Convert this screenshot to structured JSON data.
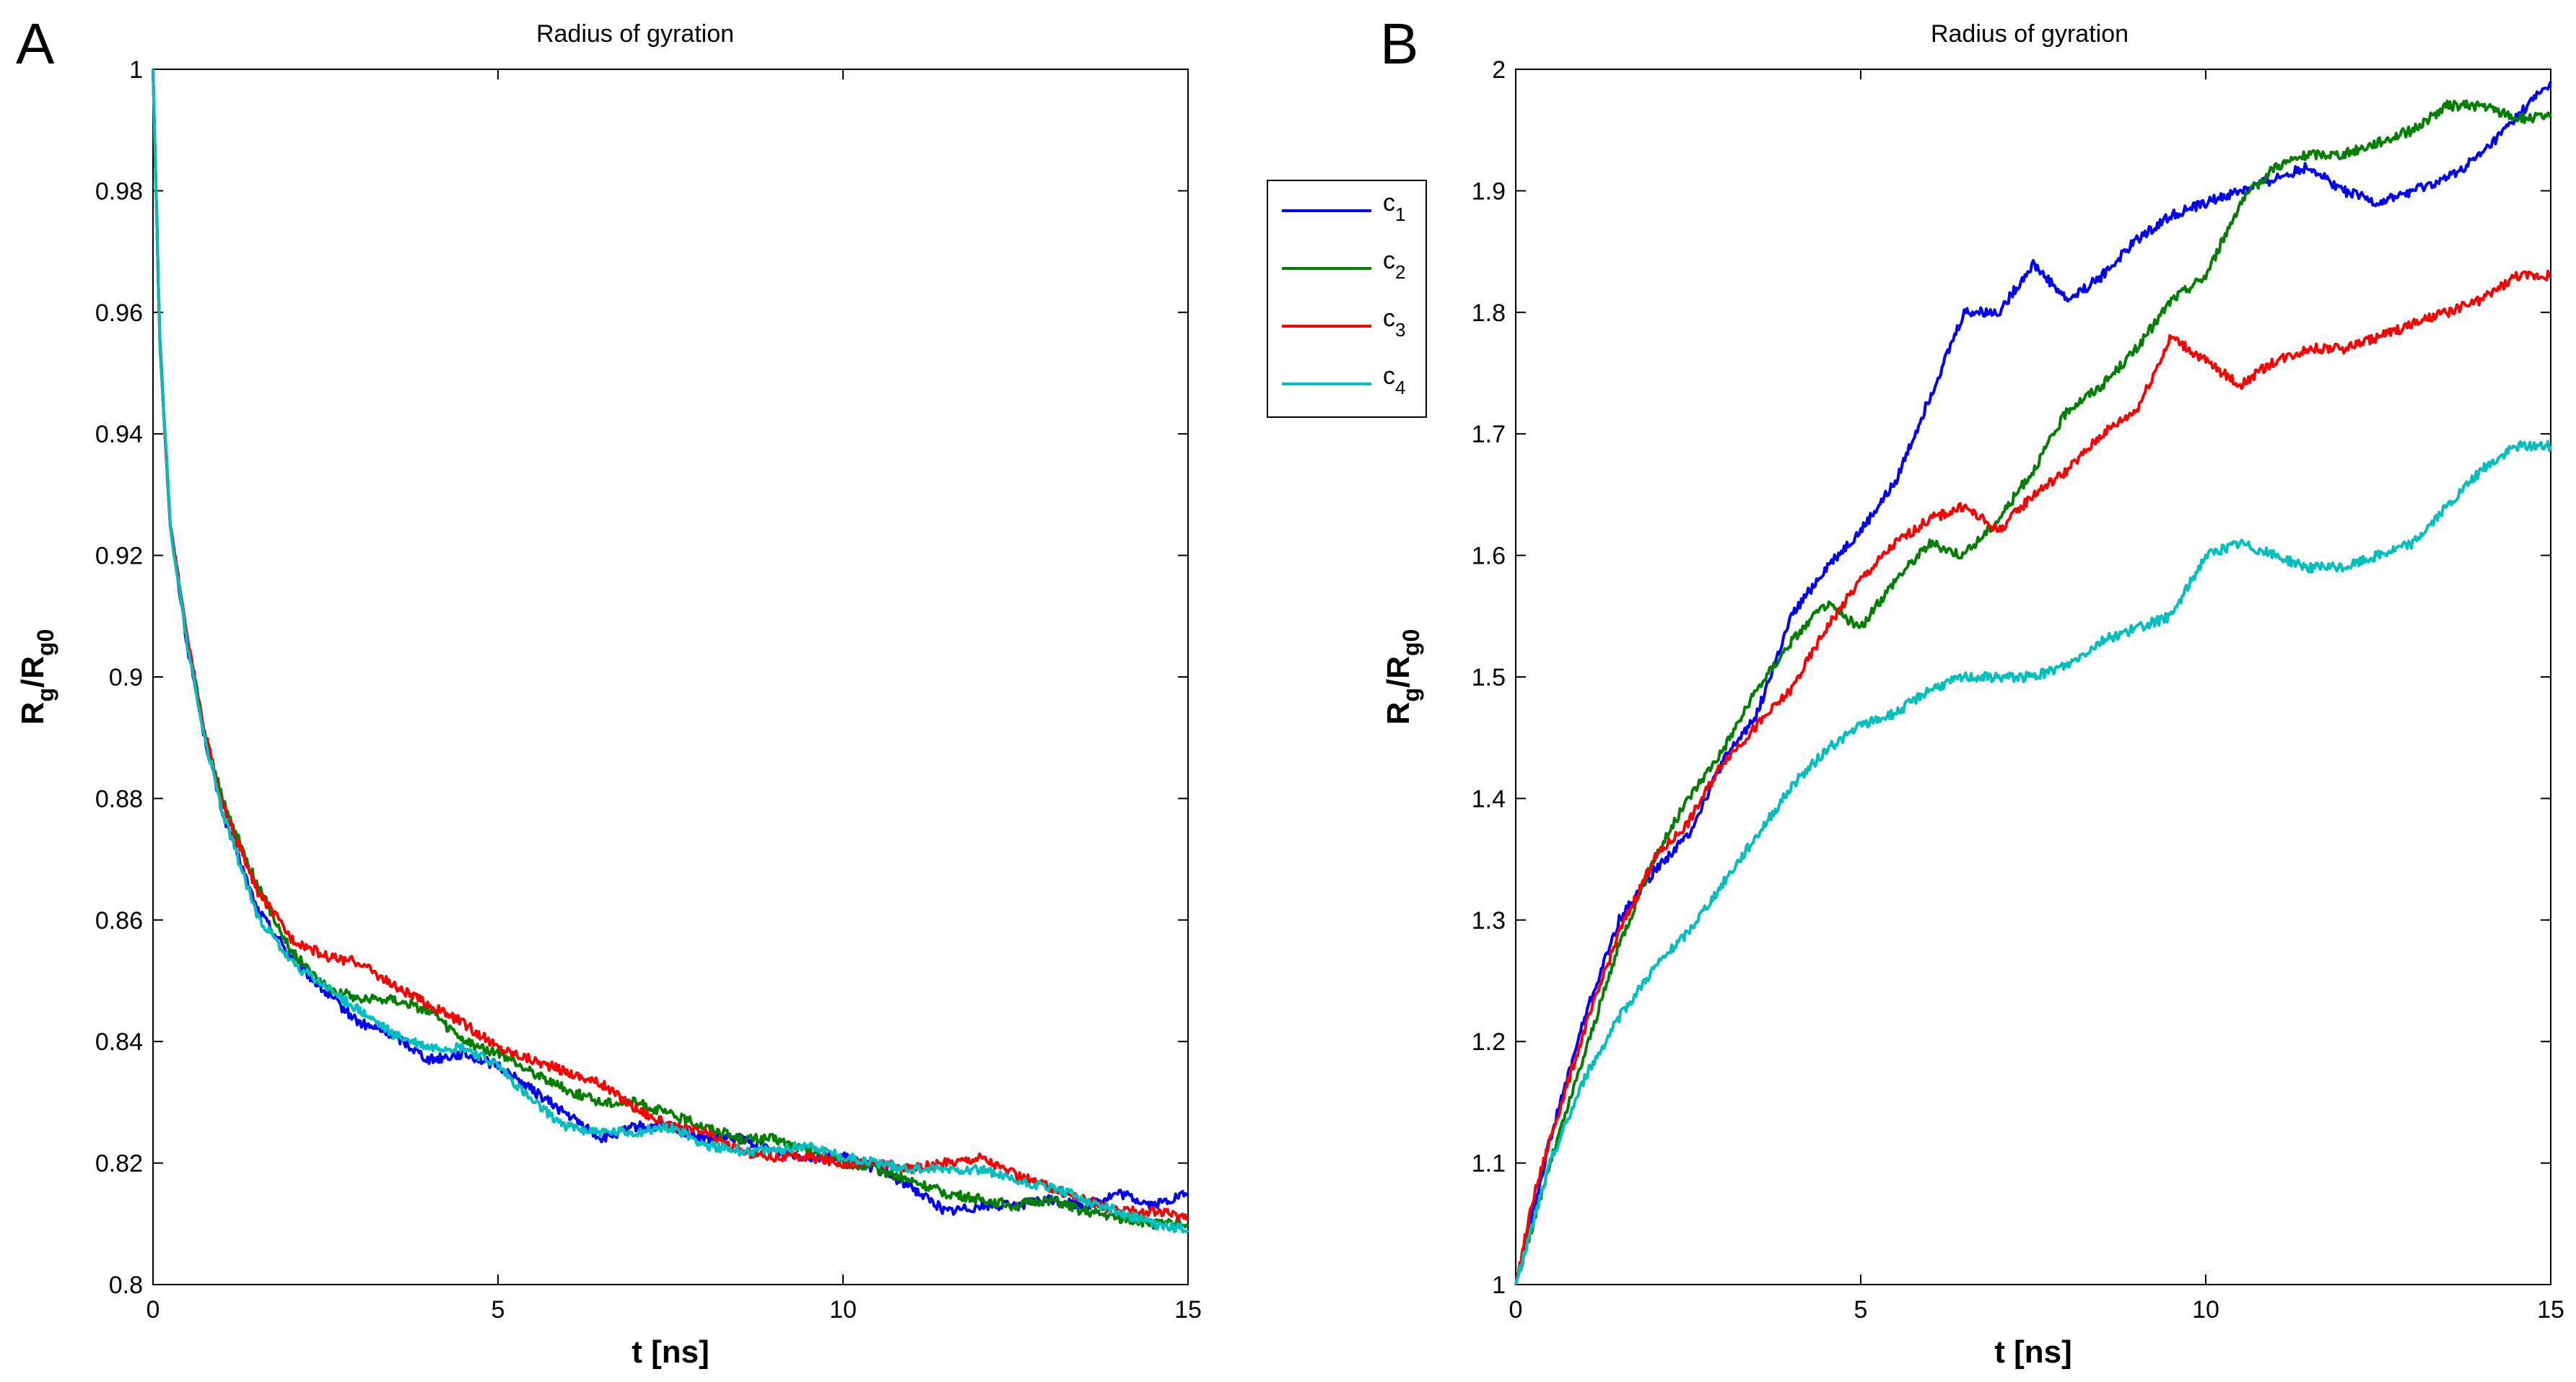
{
  "chart_data": [
    {
      "panel": "A",
      "type": "line",
      "title": "Radius of gyration",
      "xlabel": "t [ns]",
      "ylabel_main": "R",
      "ylabel_sub1": "g",
      "ylabel_mid": "/R",
      "ylabel_sub2": "g0",
      "xlim": [
        0,
        15
      ],
      "ylim": [
        0.8,
        1.0
      ],
      "xticks": [
        0,
        5,
        10,
        15
      ],
      "xtick_labels": [
        "0",
        "5",
        "10",
        "15"
      ],
      "yticks": [
        0.8,
        0.82,
        0.84,
        0.86,
        0.88,
        0.9,
        0.92,
        0.94,
        0.96,
        0.98,
        1.0
      ],
      "ytick_labels": [
        "0.8",
        "0.82",
        "0.84",
        "0.86",
        "0.88",
        "0.9",
        "0.92",
        "0.94",
        "0.96",
        "0.98",
        "1"
      ],
      "grid": false,
      "legend": {
        "placement": "right-outside",
        "entries": [
          {
            "base": "c",
            "sub": "1"
          },
          {
            "base": "c",
            "sub": "2"
          },
          {
            "base": "c",
            "sub": "3"
          },
          {
            "base": "c",
            "sub": "4"
          }
        ]
      },
      "series": [
        {
          "name": "c1",
          "color": "#0000ff",
          "x": [
            0,
            0.1,
            0.25,
            0.5,
            0.75,
            1,
            1.5,
            2,
            2.5,
            3,
            3.5,
            4,
            4.5,
            5,
            5.5,
            6,
            6.5,
            7,
            7.5,
            8,
            8.5,
            9,
            9.5,
            10,
            10.5,
            11,
            11.5,
            12,
            12.5,
            13,
            13.5,
            14,
            14.5,
            15
          ],
          "y": [
            1.0,
            0.955,
            0.925,
            0.905,
            0.89,
            0.878,
            0.862,
            0.854,
            0.848,
            0.843,
            0.841,
            0.837,
            0.838,
            0.836,
            0.832,
            0.828,
            0.824,
            0.826,
            0.826,
            0.824,
            0.824,
            0.822,
            0.821,
            0.821,
            0.819,
            0.816,
            0.812,
            0.813,
            0.813,
            0.814,
            0.813,
            0.815,
            0.813,
            0.815
          ]
        },
        {
          "name": "c2",
          "color": "#007f00",
          "x": [
            0,
            0.1,
            0.25,
            0.5,
            0.75,
            1,
            1.5,
            2,
            2.5,
            3,
            3.5,
            4,
            4.5,
            5,
            5.5,
            6,
            6.5,
            7,
            7.5,
            8,
            8.5,
            9,
            9.5,
            10,
            10.5,
            11,
            11.5,
            12,
            12.5,
            13,
            13.5,
            14,
            14.5,
            15
          ],
          "y": [
            1.0,
            0.955,
            0.925,
            0.906,
            0.891,
            0.88,
            0.866,
            0.855,
            0.849,
            0.847,
            0.847,
            0.845,
            0.84,
            0.838,
            0.835,
            0.832,
            0.83,
            0.83,
            0.828,
            0.826,
            0.824,
            0.824,
            0.822,
            0.82,
            0.819,
            0.817,
            0.815,
            0.814,
            0.813,
            0.814,
            0.812,
            0.811,
            0.81,
            0.81
          ]
        },
        {
          "name": "c3",
          "color": "#ff0000",
          "x": [
            0,
            0.1,
            0.25,
            0.5,
            0.75,
            1,
            1.5,
            2,
            2.5,
            3,
            3.5,
            4,
            4.5,
            5,
            5.5,
            6,
            6.5,
            7,
            7.5,
            8,
            8.5,
            9,
            9.5,
            10,
            10.5,
            11,
            11.5,
            12,
            12.5,
            13,
            13.5,
            14,
            14.5,
            15
          ],
          "y": [
            1.0,
            0.955,
            0.925,
            0.906,
            0.891,
            0.879,
            0.865,
            0.857,
            0.854,
            0.853,
            0.849,
            0.846,
            0.843,
            0.839,
            0.837,
            0.835,
            0.833,
            0.829,
            0.826,
            0.825,
            0.822,
            0.821,
            0.821,
            0.82,
            0.82,
            0.819,
            0.82,
            0.821,
            0.818,
            0.816,
            0.814,
            0.812,
            0.812,
            0.811
          ]
        },
        {
          "name": "c4",
          "color": "#00bfbf",
          "x": [
            0,
            0.1,
            0.25,
            0.5,
            0.75,
            1,
            1.5,
            2,
            2.5,
            3,
            3.5,
            4,
            4.5,
            5,
            5.5,
            6,
            6.5,
            7,
            7.5,
            8,
            8.5,
            9,
            9.5,
            10,
            10.5,
            11,
            11.5,
            12,
            12.5,
            13,
            13.5,
            14,
            14.5,
            15
          ],
          "y": [
            1.0,
            0.955,
            0.925,
            0.905,
            0.89,
            0.878,
            0.861,
            0.853,
            0.849,
            0.845,
            0.841,
            0.839,
            0.839,
            0.836,
            0.83,
            0.826,
            0.825,
            0.825,
            0.826,
            0.823,
            0.822,
            0.822,
            0.823,
            0.821,
            0.82,
            0.819,
            0.819,
            0.819,
            0.817,
            0.816,
            0.814,
            0.812,
            0.81,
            0.809
          ]
        }
      ]
    },
    {
      "panel": "B",
      "type": "line",
      "title": "Radius of gyration",
      "xlabel": "t [ns]",
      "ylabel_main": "R",
      "ylabel_sub1": "g",
      "ylabel_mid": "/R",
      "ylabel_sub2": "g0",
      "xlim": [
        0,
        15
      ],
      "ylim": [
        1.0,
        2.0
      ],
      "xticks": [
        0,
        5,
        10,
        15
      ],
      "xtick_labels": [
        "0",
        "5",
        "10",
        "15"
      ],
      "yticks": [
        1.0,
        1.1,
        1.2,
        1.3,
        1.4,
        1.5,
        1.6,
        1.7,
        1.8,
        1.9,
        2.0
      ],
      "ytick_labels": [
        "1",
        "1.1",
        "1.2",
        "1.3",
        "1.4",
        "1.5",
        "1.6",
        "1.7",
        "1.8",
        "1.9",
        "2"
      ],
      "grid": false,
      "series": [
        {
          "name": "c1",
          "color": "#0000ff",
          "x": [
            0,
            0.25,
            0.5,
            1,
            1.5,
            2,
            2.5,
            3,
            3.5,
            4,
            4.5,
            5,
            5.5,
            6,
            6.5,
            7,
            7.5,
            8,
            8.5,
            9,
            9.5,
            10,
            10.5,
            11,
            11.5,
            12,
            12.5,
            13,
            13.5,
            14,
            14.5,
            15
          ],
          "y": [
            1.0,
            1.06,
            1.12,
            1.22,
            1.3,
            1.34,
            1.37,
            1.43,
            1.47,
            1.55,
            1.59,
            1.62,
            1.66,
            1.73,
            1.8,
            1.8,
            1.84,
            1.81,
            1.83,
            1.86,
            1.88,
            1.89,
            1.9,
            1.91,
            1.92,
            1.9,
            1.89,
            1.9,
            1.91,
            1.93,
            1.96,
            1.99
          ]
        },
        {
          "name": "c2",
          "color": "#007f00",
          "x": [
            0,
            0.25,
            0.5,
            1,
            1.5,
            2,
            2.5,
            3,
            3.5,
            4,
            4.5,
            5,
            5.5,
            6,
            6.5,
            7,
            7.5,
            8,
            8.5,
            9,
            9.5,
            10,
            10.5,
            11,
            11.5,
            12,
            12.5,
            13,
            13.5,
            14,
            14.5,
            15
          ],
          "y": [
            1.0,
            1.05,
            1.1,
            1.19,
            1.28,
            1.35,
            1.4,
            1.44,
            1.49,
            1.53,
            1.56,
            1.54,
            1.58,
            1.61,
            1.6,
            1.63,
            1.67,
            1.72,
            1.74,
            1.77,
            1.81,
            1.83,
            1.89,
            1.92,
            1.93,
            1.93,
            1.94,
            1.95,
            1.97,
            1.97,
            1.96,
            1.96
          ]
        },
        {
          "name": "c3",
          "color": "#ff0000",
          "x": [
            0,
            0.25,
            0.5,
            1,
            1.5,
            2,
            2.5,
            3,
            3.5,
            4,
            4.5,
            5,
            5.5,
            6,
            6.5,
            7,
            7.5,
            8,
            8.5,
            9,
            9.5,
            10,
            10.5,
            11,
            11.5,
            12,
            12.5,
            13,
            13.5,
            14,
            14.5,
            15
          ],
          "y": [
            1.0,
            1.07,
            1.12,
            1.21,
            1.29,
            1.35,
            1.38,
            1.43,
            1.46,
            1.49,
            1.54,
            1.58,
            1.61,
            1.63,
            1.64,
            1.62,
            1.65,
            1.67,
            1.7,
            1.72,
            1.78,
            1.76,
            1.74,
            1.76,
            1.77,
            1.77,
            1.78,
            1.79,
            1.8,
            1.81,
            1.83,
            1.83
          ]
        },
        {
          "name": "c4",
          "color": "#00bfbf",
          "x": [
            0,
            0.25,
            0.5,
            1,
            1.5,
            2,
            2.5,
            3,
            3.5,
            4,
            4.5,
            5,
            5.5,
            6,
            6.5,
            7,
            7.5,
            8,
            8.5,
            9,
            9.5,
            10,
            10.5,
            11,
            11.5,
            12,
            12.5,
            13,
            13.5,
            14,
            14.5,
            15
          ],
          "y": [
            1.0,
            1.05,
            1.1,
            1.17,
            1.22,
            1.26,
            1.29,
            1.33,
            1.37,
            1.41,
            1.44,
            1.46,
            1.47,
            1.49,
            1.5,
            1.5,
            1.5,
            1.51,
            1.53,
            1.54,
            1.55,
            1.6,
            1.61,
            1.6,
            1.59,
            1.59,
            1.6,
            1.61,
            1.64,
            1.67,
            1.69,
            1.69
          ]
        }
      ]
    }
  ]
}
